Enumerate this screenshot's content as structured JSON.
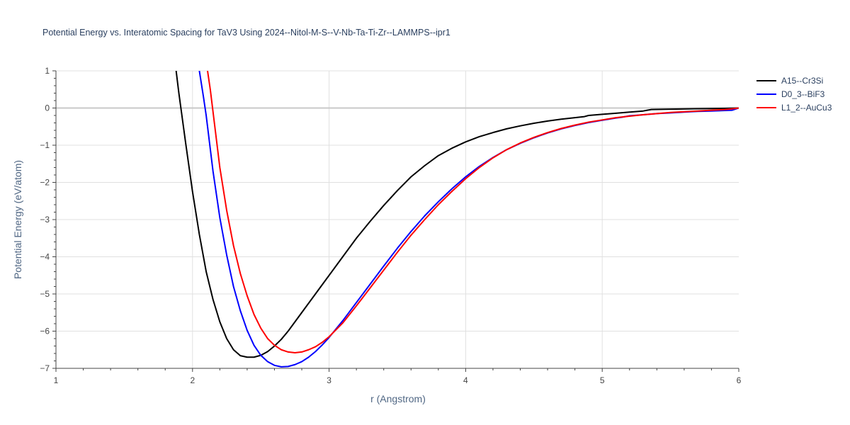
{
  "chart_data": {
    "type": "line",
    "title": "Potential Energy vs. Interatomic Spacing for TaV3 Using 2024--Nitol-M-S--V-Nb-Ta-Ti-Zr--LAMMPS--ipr1",
    "xlabel": "r (Angstrom)",
    "ylabel": "Potential Energy (eV/atom)",
    "xlim": [
      1,
      6
    ],
    "ylim": [
      -7,
      1
    ],
    "xticks": [
      1,
      2,
      3,
      4,
      5,
      6
    ],
    "yticks": [
      1,
      0,
      -1,
      -2,
      -3,
      -4,
      -5,
      -6,
      -7
    ],
    "xtick_labels": [
      "1",
      "2",
      "3",
      "4",
      "5",
      "6"
    ],
    "ytick_labels": [
      "1",
      "0",
      "−1",
      "−2",
      "−3",
      "−4",
      "−5",
      "−6",
      "−7"
    ],
    "grid": true,
    "legend_position": "top-right",
    "series": [
      {
        "name": "A15--Cr3Si",
        "color": "#000000",
        "x": [
          1.88,
          1.9,
          1.95,
          2.0,
          2.05,
          2.1,
          2.15,
          2.2,
          2.25,
          2.3,
          2.35,
          2.4,
          2.45,
          2.5,
          2.55,
          2.6,
          2.65,
          2.7,
          2.8,
          2.9,
          3.0,
          3.1,
          3.2,
          3.3,
          3.4,
          3.5,
          3.6,
          3.7,
          3.8,
          3.9,
          4.0,
          4.1,
          4.2,
          4.3,
          4.4,
          4.5,
          4.6,
          4.7,
          4.8,
          4.87,
          4.9,
          5.0,
          5.1,
          5.2,
          5.3,
          5.33,
          5.36,
          5.5,
          5.7,
          5.9,
          6.0
        ],
        "y": [
          1.0,
          0.4,
          -0.95,
          -2.25,
          -3.4,
          -4.4,
          -5.15,
          -5.75,
          -6.2,
          -6.5,
          -6.66,
          -6.7,
          -6.7,
          -6.65,
          -6.55,
          -6.4,
          -6.22,
          -6.0,
          -5.5,
          -5.0,
          -4.5,
          -4.0,
          -3.5,
          -3.05,
          -2.62,
          -2.22,
          -1.85,
          -1.55,
          -1.28,
          -1.08,
          -0.91,
          -0.77,
          -0.66,
          -0.56,
          -0.48,
          -0.41,
          -0.35,
          -0.3,
          -0.26,
          -0.23,
          -0.2,
          -0.17,
          -0.14,
          -0.11,
          -0.08,
          -0.06,
          -0.04,
          -0.03,
          -0.02,
          -0.01,
          0.0
        ]
      },
      {
        "name": "D0_3--BiF3",
        "color": "#0000ff",
        "x": [
          2.05,
          2.08,
          2.1,
          2.15,
          2.2,
          2.25,
          2.3,
          2.35,
          2.4,
          2.45,
          2.5,
          2.55,
          2.6,
          2.65,
          2.7,
          2.75,
          2.8,
          2.85,
          2.9,
          2.95,
          3.0,
          3.1,
          3.2,
          3.3,
          3.4,
          3.5,
          3.6,
          3.7,
          3.8,
          3.9,
          4.0,
          4.1,
          4.2,
          4.3,
          4.4,
          4.5,
          4.6,
          4.7,
          4.8,
          4.9,
          5.0,
          5.1,
          5.14,
          5.2,
          5.3,
          5.4,
          5.5,
          5.6,
          5.7,
          5.8,
          5.95,
          6.0
        ],
        "y": [
          1.0,
          0.3,
          -0.2,
          -1.7,
          -2.95,
          -3.95,
          -4.8,
          -5.45,
          -5.98,
          -6.38,
          -6.65,
          -6.82,
          -6.92,
          -6.96,
          -6.95,
          -6.9,
          -6.82,
          -6.7,
          -6.55,
          -6.37,
          -6.17,
          -5.72,
          -5.23,
          -4.74,
          -4.25,
          -3.77,
          -3.32,
          -2.9,
          -2.52,
          -2.17,
          -1.85,
          -1.57,
          -1.33,
          -1.12,
          -0.95,
          -0.8,
          -0.67,
          -0.56,
          -0.47,
          -0.39,
          -0.33,
          -0.27,
          -0.25,
          -0.21,
          -0.18,
          -0.15,
          -0.13,
          -0.11,
          -0.09,
          -0.08,
          -0.06,
          0.0
        ]
      },
      {
        "name": "L1_2--AuCu3",
        "color": "#ff0000",
        "x": [
          2.11,
          2.13,
          2.15,
          2.2,
          2.25,
          2.3,
          2.35,
          2.4,
          2.45,
          2.5,
          2.55,
          2.6,
          2.65,
          2.7,
          2.75,
          2.8,
          2.85,
          2.9,
          2.95,
          3.0,
          3.1,
          3.2,
          3.3,
          3.4,
          3.5,
          3.6,
          3.7,
          3.8,
          3.9,
          4.0,
          4.1,
          4.2,
          4.3,
          4.4,
          4.5,
          4.6,
          4.7,
          4.8,
          4.9,
          5.0,
          5.1,
          5.2,
          5.3,
          5.4,
          5.5,
          5.6,
          5.7,
          5.8,
          5.9,
          5.96,
          6.0
        ],
        "y": [
          1.0,
          0.5,
          -0.1,
          -1.6,
          -2.75,
          -3.7,
          -4.45,
          -5.05,
          -5.55,
          -5.92,
          -6.2,
          -6.38,
          -6.5,
          -6.56,
          -6.58,
          -6.56,
          -6.5,
          -6.42,
          -6.3,
          -6.15,
          -5.78,
          -5.32,
          -4.84,
          -4.36,
          -3.88,
          -3.42,
          -3.0,
          -2.6,
          -2.24,
          -1.9,
          -1.6,
          -1.34,
          -1.12,
          -0.94,
          -0.79,
          -0.66,
          -0.55,
          -0.46,
          -0.38,
          -0.32,
          -0.26,
          -0.22,
          -0.18,
          -0.15,
          -0.12,
          -0.1,
          -0.08,
          -0.06,
          -0.04,
          -0.02,
          0.0
        ]
      }
    ]
  }
}
